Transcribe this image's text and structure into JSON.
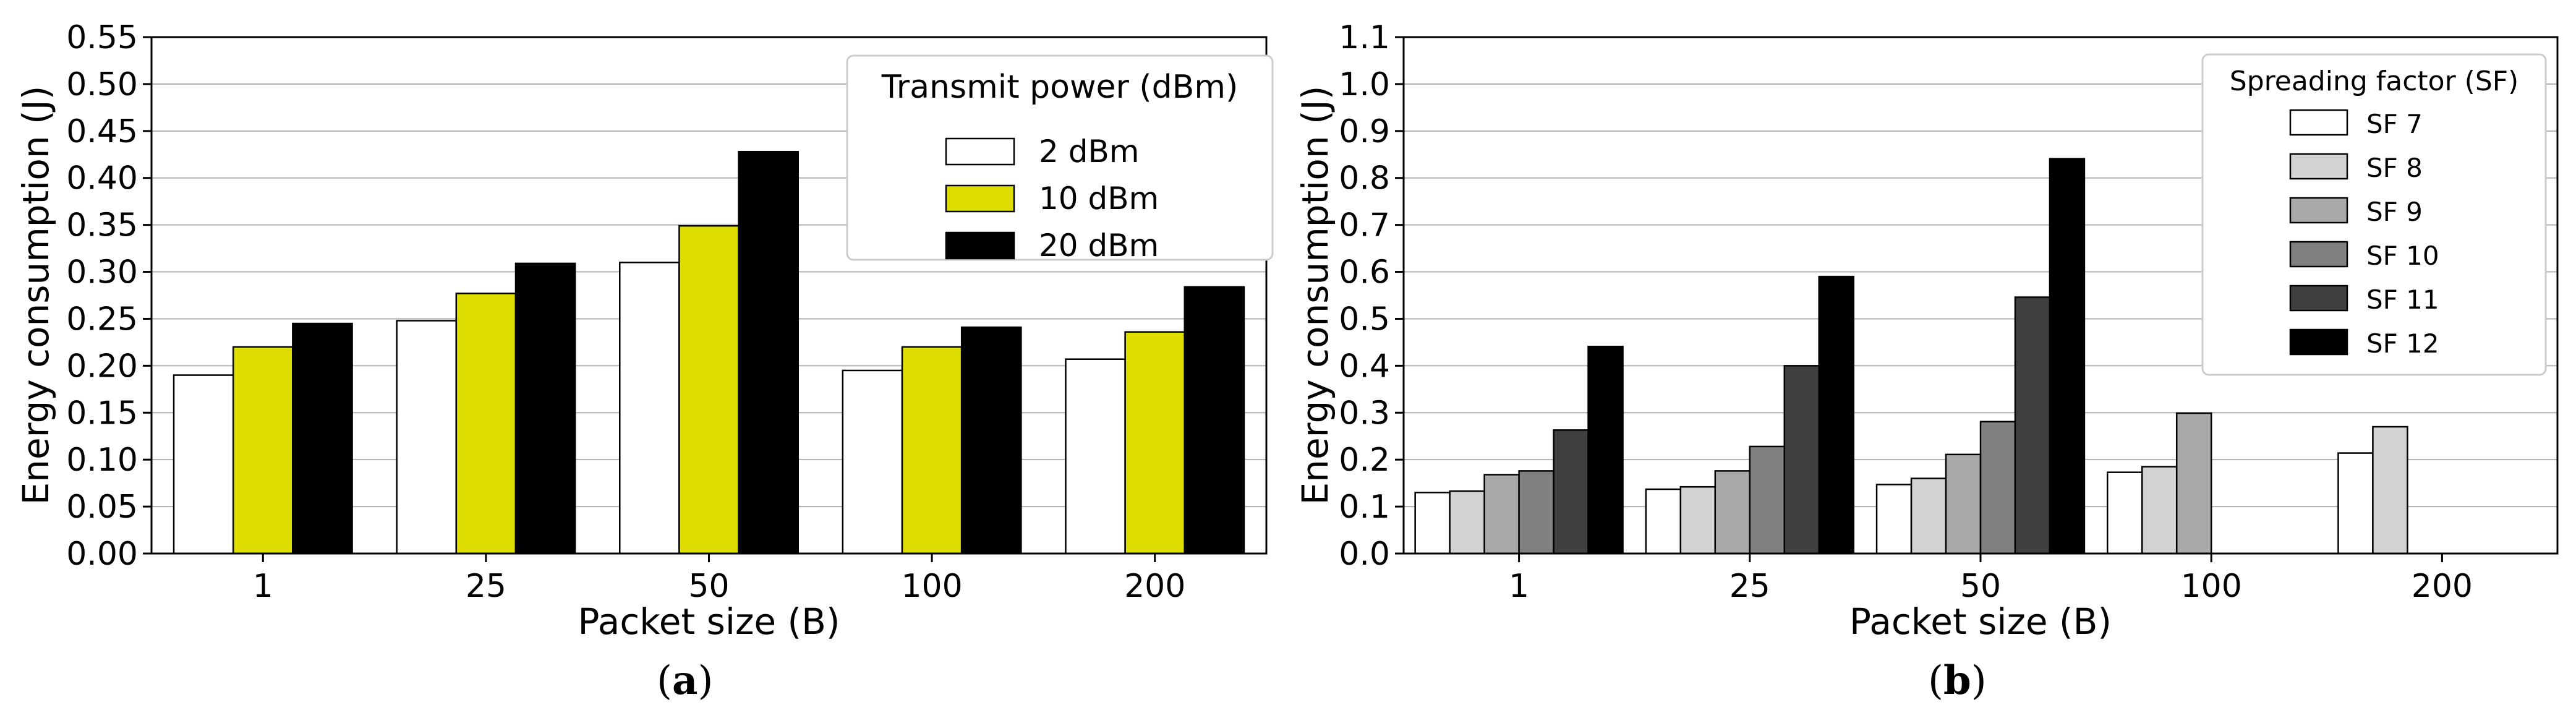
{
  "chart_data": [
    {
      "type": "bar",
      "panel_label": "a",
      "categories": [
        "1",
        "25",
        "50",
        "100",
        "200"
      ],
      "xlabel": "Packet size (B)",
      "ylabel": "Energy consumption (J)",
      "ylim": [
        0,
        0.55
      ],
      "yticks": [
        "0.00",
        "0.05",
        "0.10",
        "0.15",
        "0.20",
        "0.25",
        "0.30",
        "0.35",
        "0.40",
        "0.45",
        "0.50",
        "0.55"
      ],
      "grid": "horizontal",
      "legend": {
        "title": "Transmit power (dBm)",
        "placement": "top-right"
      },
      "series": [
        {
          "name": "2 dBm",
          "color": "#ffffff",
          "values": [
            0.19,
            0.248,
            0.31,
            0.195,
            0.207
          ]
        },
        {
          "name": "10 dBm",
          "color": "#dddd00",
          "values": [
            0.22,
            0.277,
            0.349,
            0.22,
            0.236
          ]
        },
        {
          "name": "20 dBm",
          "color": "#000000",
          "values": [
            0.245,
            0.309,
            0.428,
            0.241,
            0.284
          ]
        }
      ]
    },
    {
      "type": "bar",
      "panel_label": "b",
      "categories": [
        "1",
        "25",
        "50",
        "100",
        "200"
      ],
      "xlabel": "Packet size (B)",
      "ylabel": "Energy consumption (J)",
      "ylim": [
        0,
        1.1
      ],
      "yticks": [
        "0.0",
        "0.1",
        "0.2",
        "0.3",
        "0.4",
        "0.5",
        "0.6",
        "0.7",
        "0.8",
        "0.9",
        "1.0",
        "1.1"
      ],
      "grid": "horizontal",
      "legend": {
        "title": "Spreading factor (SF)",
        "placement": "top-right"
      },
      "series": [
        {
          "name": "SF 7",
          "color": "#ffffff",
          "values": [
            0.13,
            0.137,
            0.147,
            0.173,
            0.214
          ]
        },
        {
          "name": "SF 8",
          "color": "#d3d3d3",
          "values": [
            0.133,
            0.142,
            0.16,
            0.185,
            0.27
          ]
        },
        {
          "name": "SF 9",
          "color": "#a9a9a9",
          "values": [
            0.168,
            0.176,
            0.211,
            0.299,
            null
          ]
        },
        {
          "name": "SF 10",
          "color": "#808080",
          "values": [
            0.176,
            0.228,
            0.281,
            null,
            null
          ]
        },
        {
          "name": "SF 11",
          "color": "#404040",
          "values": [
            0.263,
            0.4,
            0.546,
            null,
            null
          ]
        },
        {
          "name": "SF 12",
          "color": "#000000",
          "values": [
            0.441,
            0.59,
            0.841,
            null,
            null
          ]
        }
      ]
    }
  ]
}
